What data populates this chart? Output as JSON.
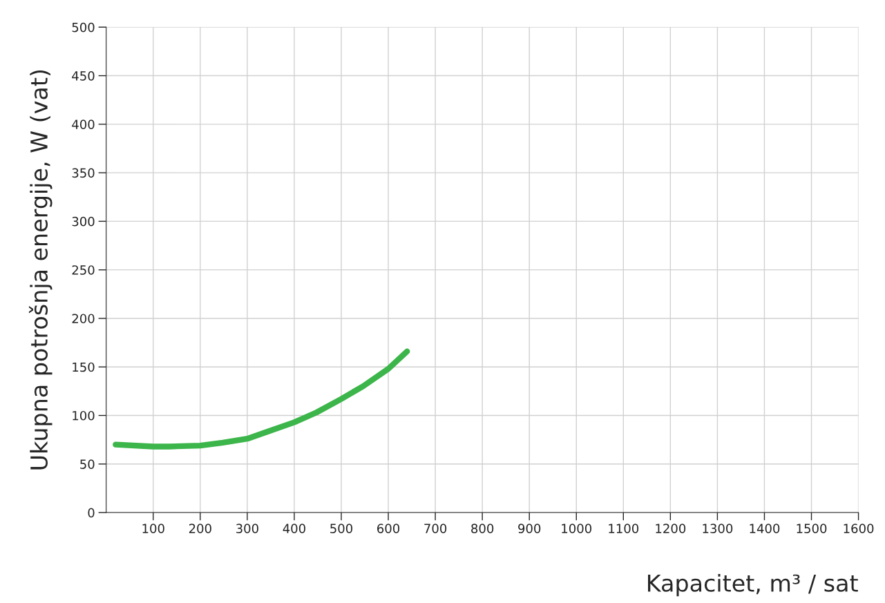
{
  "chart_data": {
    "type": "line",
    "xlabel": "Kapacitet, m³ / sat",
    "ylabel": "Ukupna potrošnja energije, W (vat)",
    "x": [
      20,
      100,
      134,
      200,
      248,
      300,
      347,
      400,
      447,
      500,
      546,
      600,
      640
    ],
    "series": [
      {
        "color": "#3cb54a",
        "values": [
          70,
          68,
          68,
          69,
          72,
          76,
          84,
          93,
          103,
          117,
          130,
          148,
          166
        ]
      }
    ],
    "xlim": [
      0,
      1600
    ],
    "xticks": [
      100,
      200,
      300,
      400,
      500,
      600,
      700,
      800,
      900,
      1000,
      1100,
      1200,
      1300,
      1400,
      1500,
      1600
    ],
    "ylim": [
      0,
      500
    ],
    "yticks": [
      0,
      50,
      100,
      150,
      200,
      250,
      300,
      350,
      400,
      450,
      500
    ],
    "grid": true,
    "marker": "none",
    "line_style": "solid"
  }
}
